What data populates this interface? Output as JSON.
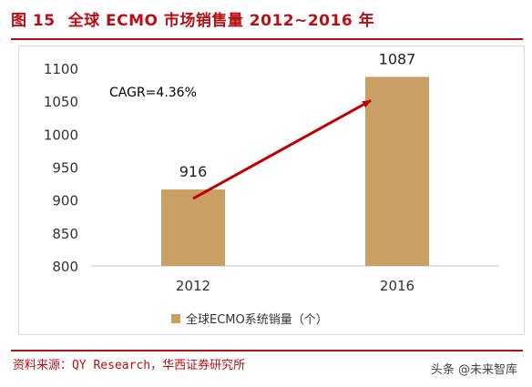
{
  "header": {
    "figure_number": "图 15",
    "title": "全球 ECMO 市场销售量 2012~2016 年"
  },
  "source": "资料来源：QY Research，华西证券研究所",
  "watermark": "头条 @未来智库",
  "colors": {
    "accent": "#b80f14",
    "bar": "#c9a063",
    "arrow": "#c00000"
  },
  "chart_data": {
    "type": "bar",
    "categories": [
      "2012",
      "2016"
    ],
    "series": [
      {
        "name": "全球ECMO系统销量（个）",
        "values": [
          916,
          1087
        ]
      }
    ],
    "data_labels": [
      "916",
      "1087"
    ],
    "ylim": [
      800,
      1100
    ],
    "yticks": [
      800,
      850,
      900,
      950,
      1000,
      1050,
      1100
    ],
    "grid": false,
    "legend_position": "bottom",
    "annotation": "CAGR=4.36%",
    "xlabel": "",
    "ylabel": ""
  }
}
